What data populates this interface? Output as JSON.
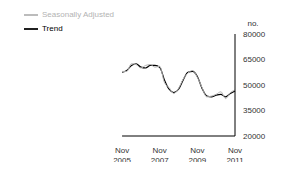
{
  "chart_data": {
    "type": "line",
    "y_label": "no.",
    "categories": [
      "Nov 2005",
      null,
      null,
      null,
      null,
      null,
      null,
      null,
      "Nov 2007",
      null,
      null,
      null,
      null,
      null,
      null,
      null,
      "Nov 2009",
      null,
      null,
      null,
      null,
      null,
      null,
      null,
      "Nov 2011"
    ],
    "series": [
      {
        "name": "Trend",
        "color": "#000000",
        "values": [
          57500,
          58500,
          61500,
          62500,
          60500,
          60000,
          61500,
          61500,
          60500,
          53000,
          47500,
          45500,
          47500,
          53000,
          57500,
          58000,
          55000,
          48000,
          43500,
          43000,
          44000,
          44500,
          43000,
          45000,
          46500
        ]
      },
      {
        "name": "Seasonally Adjusted",
        "color": "#b3b3b3",
        "values": [
          58000,
          58000,
          62500,
          62000,
          60000,
          61500,
          62000,
          60500,
          61000,
          51500,
          48500,
          45000,
          48000,
          53500,
          57000,
          58500,
          54500,
          48500,
          43000,
          43500,
          44500,
          46000,
          42000,
          45500,
          47000
        ]
      }
    ],
    "ylim": [
      20000,
      80000
    ],
    "yticks": [
      20000,
      35000,
      50000,
      65000,
      80000
    ],
    "legend": "top-left",
    "grid": false
  }
}
